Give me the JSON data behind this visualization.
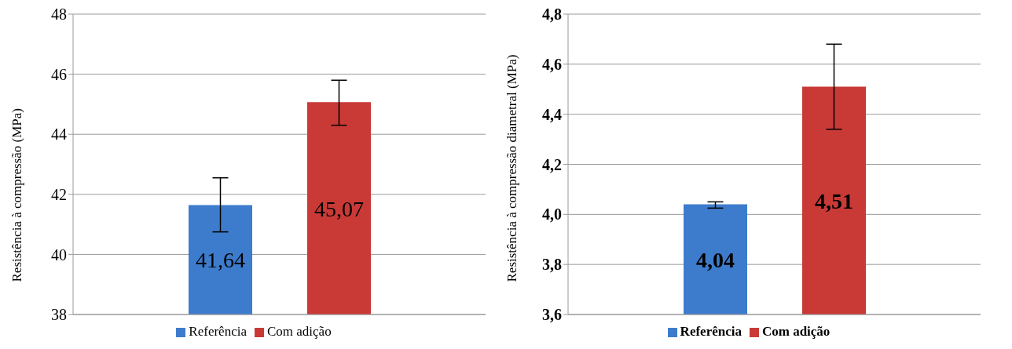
{
  "chart_data": [
    {
      "type": "bar",
      "ylabel": "Resistência à compressão (MPa)",
      "categories": [
        null
      ],
      "series": [
        {
          "name": "Referência",
          "color": "#3d7ccc",
          "values": [
            41.64
          ],
          "errors": [
            [
              40.75,
              42.55
            ]
          ],
          "value_labels": [
            "41,64"
          ]
        },
        {
          "name": "Com adição",
          "color": "#c93a37",
          "values": [
            45.07
          ],
          "errors": [
            [
              44.3,
              45.8
            ]
          ],
          "value_labels": [
            "45,07"
          ]
        }
      ],
      "ylim": [
        38,
        48
      ],
      "yticks": [
        38,
        40,
        42,
        44,
        46,
        48
      ],
      "grid": "y",
      "legend": "bottom"
    },
    {
      "type": "bar",
      "ylabel": "Resistência à compressão diametral (MPa)",
      "categories": [
        null
      ],
      "series": [
        {
          "name": "Referência",
          "color": "#3d7ccc",
          "values": [
            4.04
          ],
          "errors": [
            [
              4.025,
              4.05
            ]
          ],
          "value_labels": [
            "4,04"
          ]
        },
        {
          "name": "Com adição",
          "color": "#c93a37",
          "values": [
            4.51
          ],
          "errors": [
            [
              4.34,
              4.68
            ]
          ],
          "value_labels": [
            "4,51"
          ]
        }
      ],
      "ylim": [
        3.6,
        4.8
      ],
      "yticks": [
        {
          "value": 3.6,
          "label": "3,6"
        },
        {
          "value": 3.8,
          "label": "3,8"
        },
        {
          "value": 4.0,
          "label": "4,0"
        },
        {
          "value": 4.2,
          "label": "4,2"
        },
        {
          "value": 4.4,
          "label": "4,4"
        },
        {
          "value": 4.6,
          "label": "4,6"
        },
        {
          "value": 4.8,
          "label": "4,8"
        }
      ],
      "grid": "y",
      "legend": "bottom"
    }
  ]
}
